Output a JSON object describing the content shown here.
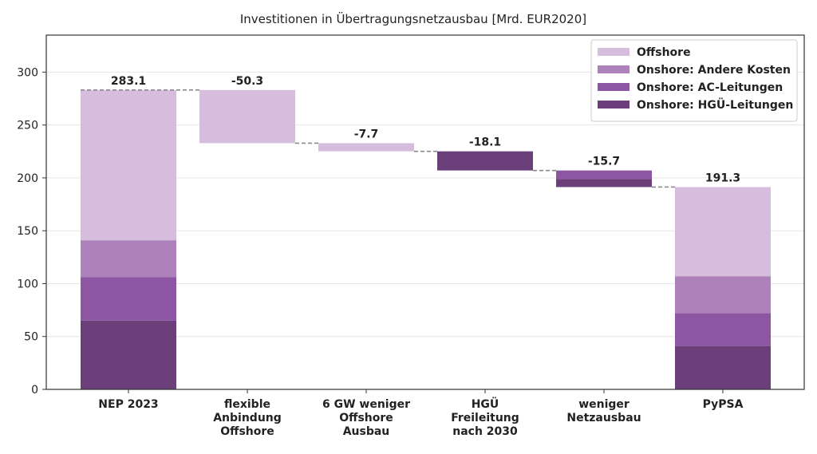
{
  "chart_data": {
    "type": "bar",
    "subtype": "waterfall-stacked",
    "title": "Investitionen in Übertragungsnetzausbau [Mrd. EUR2020]",
    "xlabel": "",
    "ylabel": "",
    "ylim": [
      0,
      335
    ],
    "yticks": [
      0,
      50,
      100,
      150,
      200,
      250,
      300
    ],
    "grid": true,
    "legend_position": "top-right",
    "categories": [
      [
        "NEP 2023"
      ],
      [
        "flexible",
        "Anbindung",
        "Offshore"
      ],
      [
        "6 GW weniger",
        "Offshore",
        "Ausbau"
      ],
      [
        "HGÜ",
        "Freileitung",
        "nach 2030"
      ],
      [
        "weniger",
        "Netzausbau"
      ],
      [
        "PyPSA"
      ]
    ],
    "series": [
      {
        "name": "Offshore",
        "color": "#d6bddd"
      },
      {
        "name": "Onshore: Andere Kosten",
        "color": "#ad81b9"
      },
      {
        "name": "Onshore: AC-Leitungen",
        "color": "#8c56a3"
      },
      {
        "name": "Onshore: HGÜ-Leitungen",
        "color": "#6b3f7a"
      }
    ],
    "totals": [
      {
        "category_index": 0,
        "label": "283.1",
        "segments": [
          65,
          41,
          35,
          142.1
        ]
      },
      {
        "category_index": 5,
        "label": "191.3",
        "segments": [
          41,
          31,
          35,
          84.3
        ]
      }
    ],
    "changes": [
      {
        "category_index": 1,
        "label": "-50.3",
        "series_index": 0,
        "from": 283.1,
        "to": 232.8
      },
      {
        "category_index": 2,
        "label": "-7.7",
        "series_index": 0,
        "from": 232.8,
        "to": 225.1
      },
      {
        "category_index": 3,
        "label": "-18.1",
        "series_index": 3,
        "from": 225.1,
        "to": 207.0
      },
      {
        "category_index": 4,
        "label": "-15.7",
        "series_index": 2,
        "from": 207.0,
        "to": 191.3,
        "split": [
          {
            "series_index": 2,
            "from": 207.0,
            "to": 199.0
          },
          {
            "series_index": 3,
            "from": 199.0,
            "to": 191.3
          }
        ]
      }
    ]
  }
}
